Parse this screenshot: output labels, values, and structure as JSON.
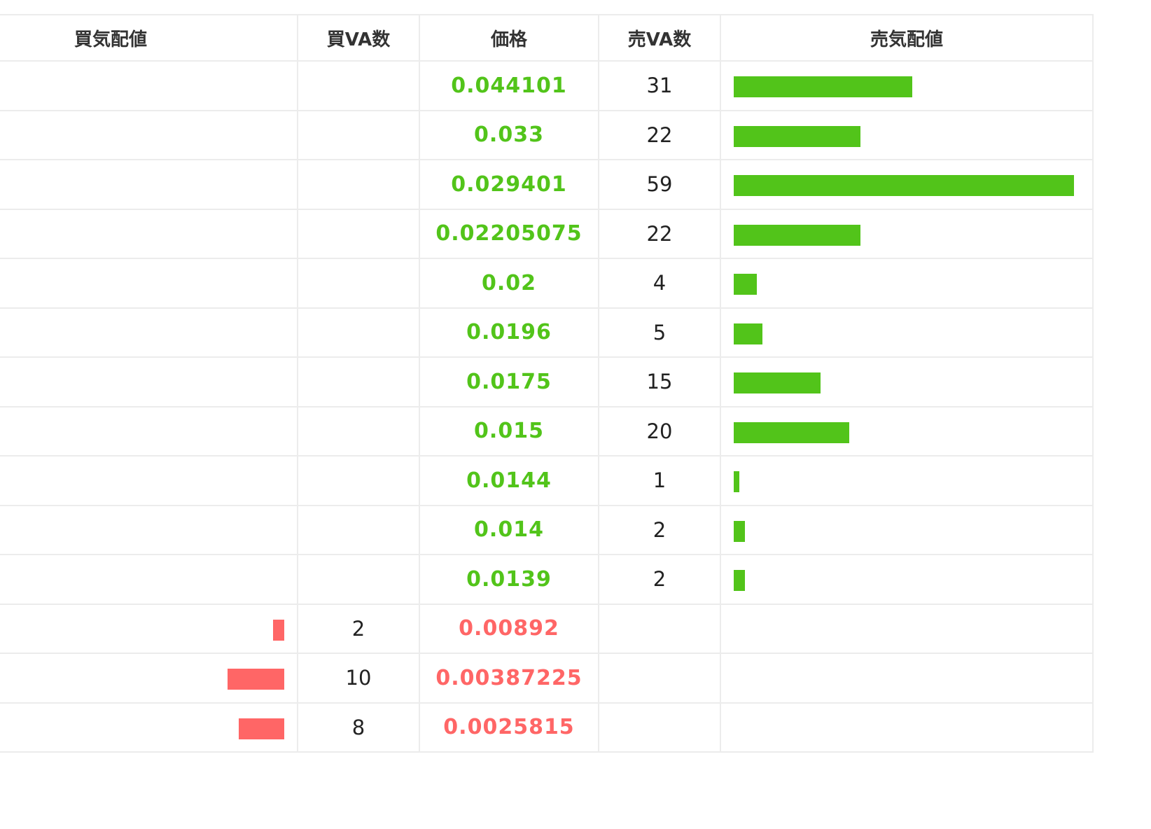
{
  "colors": {
    "ask": "#52c41a",
    "bid": "#ff6666"
  },
  "headers": {
    "buy_depth": "買気配値",
    "buy_qty": "買VA数",
    "price": "価格",
    "sell_qty": "売VA数",
    "sell_depth": "売気配値"
  },
  "depth_scale_max": 59,
  "rows": [
    {
      "side": "ask",
      "price": "0.044101",
      "buy_qty": "",
      "sell_qty": "31"
    },
    {
      "side": "ask",
      "price": "0.033",
      "buy_qty": "",
      "sell_qty": "22"
    },
    {
      "side": "ask",
      "price": "0.029401",
      "buy_qty": "",
      "sell_qty": "59"
    },
    {
      "side": "ask",
      "price": "0.02205075",
      "buy_qty": "",
      "sell_qty": "22"
    },
    {
      "side": "ask",
      "price": "0.02",
      "buy_qty": "",
      "sell_qty": "4"
    },
    {
      "side": "ask",
      "price": "0.0196",
      "buy_qty": "",
      "sell_qty": "5"
    },
    {
      "side": "ask",
      "price": "0.0175",
      "buy_qty": "",
      "sell_qty": "15"
    },
    {
      "side": "ask",
      "price": "0.015",
      "buy_qty": "",
      "sell_qty": "20"
    },
    {
      "side": "ask",
      "price": "0.0144",
      "buy_qty": "",
      "sell_qty": "1"
    },
    {
      "side": "ask",
      "price": "0.014",
      "buy_qty": "",
      "sell_qty": "2"
    },
    {
      "side": "ask",
      "price": "0.0139",
      "buy_qty": "",
      "sell_qty": "2"
    },
    {
      "side": "bid",
      "price": "0.00892",
      "buy_qty": "2",
      "sell_qty": ""
    },
    {
      "side": "bid",
      "price": "0.00387225",
      "buy_qty": "10",
      "sell_qty": ""
    },
    {
      "side": "bid",
      "price": "0.0025815",
      "buy_qty": "8",
      "sell_qty": ""
    }
  ]
}
